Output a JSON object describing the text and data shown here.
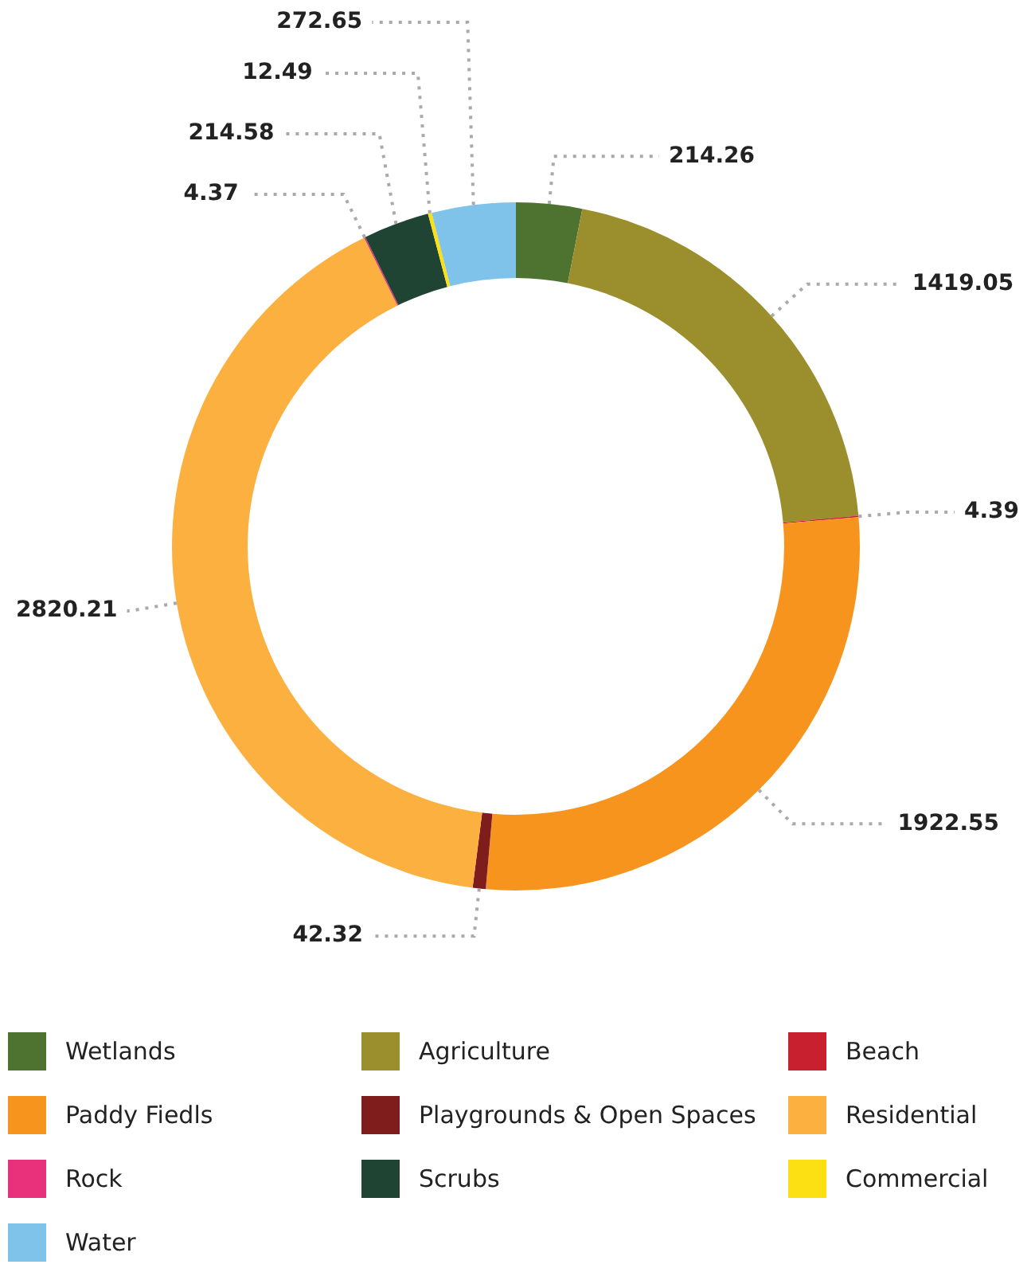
{
  "chart_data": {
    "type": "donut",
    "categories": [
      "Wetlands",
      "Agriculture",
      "Beach",
      "Paddy Fiedls",
      "Playgrounds & Open Spaces",
      "Residential",
      "Rock",
      "Scrubs",
      "Commercial",
      "Water"
    ],
    "values": [
      214.26,
      1419.05,
      4.39,
      1922.55,
      42.32,
      2820.21,
      4.37,
      214.58,
      12.49,
      272.65
    ],
    "colors": [
      "#4e7330",
      "#9b8e2c",
      "#c8202e",
      "#f7941d",
      "#7f1d1d",
      "#fbb040",
      "#e8317a",
      "#1f4434",
      "#fde013",
      "#7fc2ea"
    ],
    "data_labels": true,
    "legend": "bottom"
  }
}
